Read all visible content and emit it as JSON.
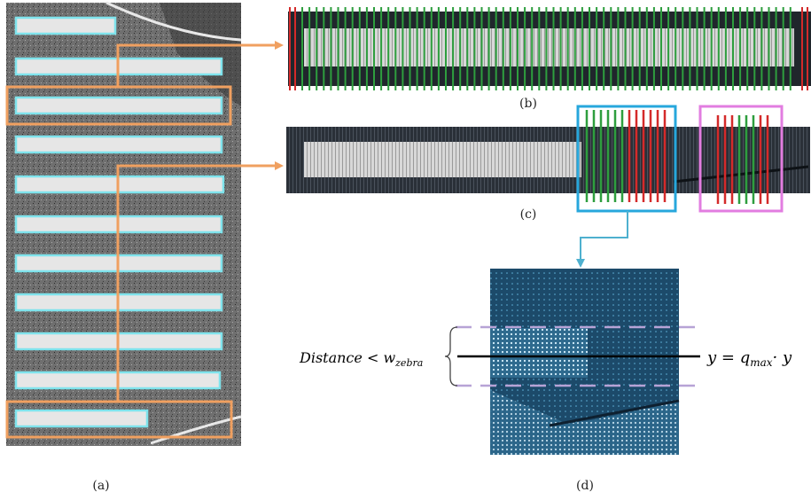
{
  "panels": {
    "a": {
      "caption": "(a)"
    },
    "b": {
      "caption": "(b)"
    },
    "c": {
      "caption": "(c)"
    },
    "d": {
      "caption": "(d)"
    }
  },
  "annotations": {
    "distance_text": "Distance < w",
    "distance_sub": "zebra",
    "equation_main": "y = q",
    "equation_sub": "max",
    "equation_tail": "· y"
  },
  "colors": {
    "box_cyan": "#7fe3ec",
    "highlight_orange": "#f0a060",
    "line_green": "#2e9e3e",
    "line_red": "#d42a2a",
    "box_blue": "#27a7dc",
    "box_pink": "#e27de0",
    "dash_purple": "#b7a3d6"
  }
}
